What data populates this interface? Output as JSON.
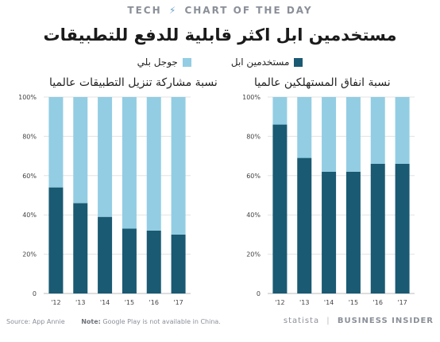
{
  "header": {
    "tech": "TECH",
    "chart_of_the_day": "CHART OF THE DAY"
  },
  "title": "مستخدمين ابل اكثر قابلية للدفع للتطبيقات",
  "legend": {
    "apple_label": "مستخدمين ابل",
    "google_label": "جوجل بلي"
  },
  "colors": {
    "apple": "#1a5a73",
    "google": "#93cde3",
    "grid": "#e3e3e3",
    "tick": "#444444"
  },
  "chart_data": [
    {
      "type": "bar",
      "stacked": true,
      "title": "نسبة مشاركة تنزيل التطبيقات عالميا",
      "categories": [
        "'12",
        "'13",
        "'14",
        "'15",
        "'16",
        "'17"
      ],
      "series": [
        {
          "name": "مستخدمين ابل",
          "values": [
            54,
            46,
            39,
            33,
            32,
            30
          ]
        },
        {
          "name": "جوجل بلي",
          "values": [
            46,
            54,
            61,
            67,
            68,
            70
          ]
        }
      ],
      "ylim": [
        0,
        100
      ],
      "yticks": [
        "0",
        "20%",
        "40%",
        "60%",
        "80%",
        "100%"
      ],
      "grid": true
    },
    {
      "type": "bar",
      "stacked": true,
      "title": "نسبة انفاق المستهلكين عالميا",
      "categories": [
        "'12",
        "'13",
        "'14",
        "'15",
        "'16",
        "'17"
      ],
      "series": [
        {
          "name": "مستخدمين ابل",
          "values": [
            86,
            69,
            62,
            62,
            66,
            66
          ]
        },
        {
          "name": "جوجل بلي",
          "values": [
            14,
            31,
            38,
            38,
            34,
            34
          ]
        }
      ],
      "ylim": [
        0,
        100
      ],
      "yticks": [
        "0",
        "20%",
        "40%",
        "60%",
        "80%",
        "100%"
      ],
      "grid": true
    }
  ],
  "footer": {
    "source": "Source: App Annie",
    "note_label": "Note:",
    "note_text": "Google Play is not available in China.",
    "statista": "statista",
    "business_insider": "BUSINESS INSIDER"
  }
}
